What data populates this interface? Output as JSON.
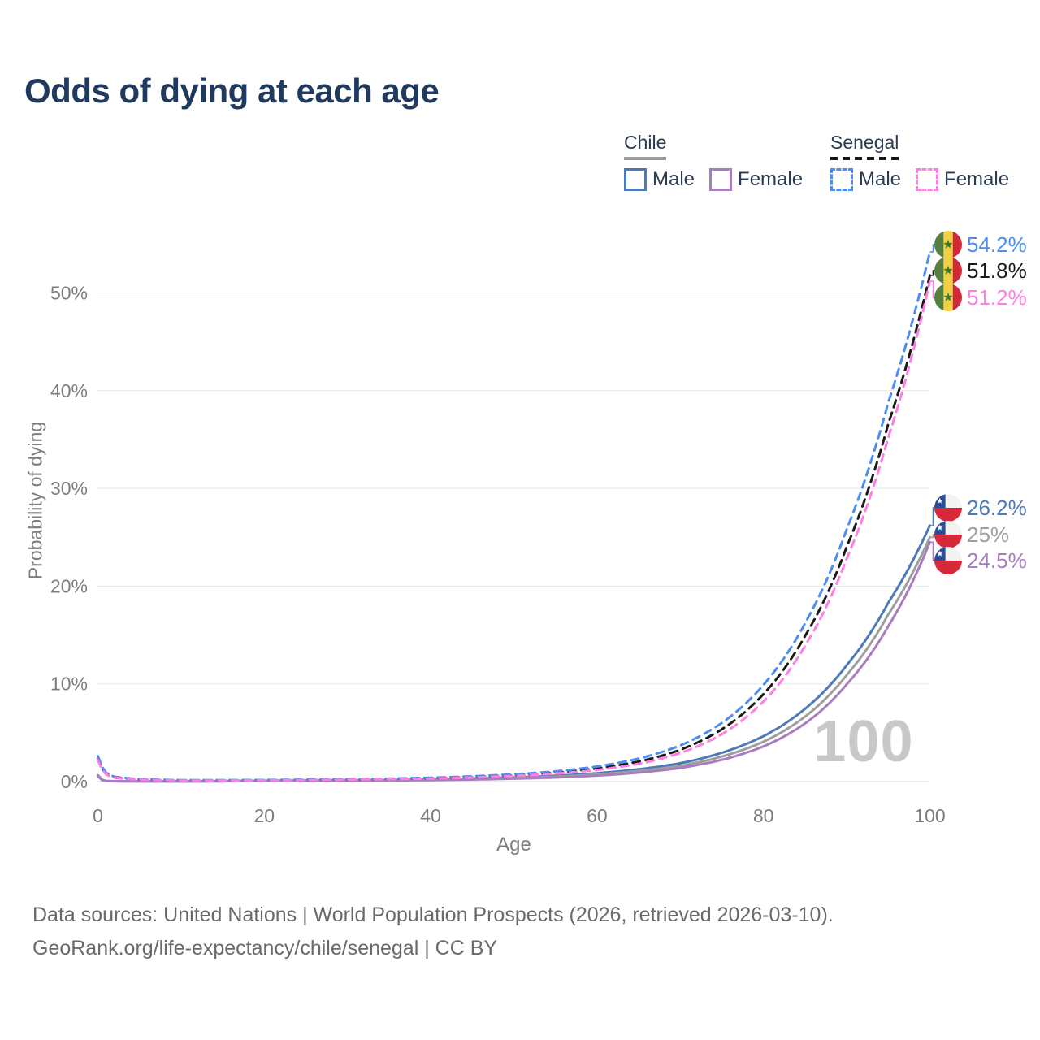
{
  "title": {
    "text": "Odds of dying at each age"
  },
  "legend": {
    "groups": [
      {
        "name": "Chile",
        "underline_style": "solid",
        "underline_color": "#999999",
        "items": [
          {
            "label": "Male",
            "color": "#4e79b8",
            "style": "solid"
          },
          {
            "label": "Female",
            "color": "#a87cbe",
            "style": "solid"
          }
        ]
      },
      {
        "name": "Senegal",
        "underline_style": "dashed",
        "underline_color": "#1a1a1a",
        "items": [
          {
            "label": "Male",
            "color": "#4d8cf0",
            "style": "dashed"
          },
          {
            "label": "Female",
            "color": "#fc7fe1",
            "style": "dashed"
          }
        ]
      }
    ]
  },
  "chart_data": {
    "type": "line",
    "title": "Odds of dying at each age",
    "xlabel": "Age",
    "ylabel": "Probability of dying",
    "xlim": [
      0,
      100
    ],
    "ylim": [
      0,
      56
    ],
    "xticks": [
      0,
      20,
      40,
      60,
      80,
      100
    ],
    "yticks": [
      "0%",
      "10%",
      "20%",
      "30%",
      "40%",
      "50%"
    ],
    "ytick_values": [
      0,
      10,
      20,
      30,
      40,
      50
    ],
    "grid": "horizontal",
    "legend_position": "top-right",
    "watermark": "100",
    "ages": [
      0,
      1,
      2,
      5,
      10,
      15,
      20,
      25,
      30,
      35,
      40,
      45,
      50,
      55,
      60,
      65,
      70,
      75,
      80,
      85,
      90,
      95,
      100
    ],
    "series": [
      {
        "name": "Senegal Male",
        "country": "Senegal",
        "sex": "Male",
        "color": "#4d8cf0",
        "dash": "dashed",
        "end_label": "54.2%",
        "flag": "senegal",
        "values": [
          2.6,
          0.9,
          0.5,
          0.25,
          0.15,
          0.15,
          0.17,
          0.2,
          0.25,
          0.31,
          0.4,
          0.55,
          0.75,
          1.05,
          1.55,
          2.35,
          3.7,
          6.0,
          9.9,
          16.2,
          25.8,
          38.8,
          54.2
        ]
      },
      {
        "name": "Senegal",
        "country": "Senegal",
        "sex": "Both",
        "color": "#1a1a1a",
        "dash": "dashed",
        "end_label": "51.8%",
        "flag": "senegal",
        "values": [
          2.4,
          0.8,
          0.45,
          0.22,
          0.13,
          0.13,
          0.15,
          0.18,
          0.22,
          0.27,
          0.35,
          0.48,
          0.66,
          0.92,
          1.35,
          2.05,
          3.25,
          5.35,
          8.95,
          14.9,
          24.0,
          36.6,
          51.8
        ]
      },
      {
        "name": "Senegal Female",
        "country": "Senegal",
        "sex": "Female",
        "color": "#fc7fe1",
        "dash": "dashed",
        "end_label": "51.2%",
        "flag": "senegal",
        "values": [
          2.2,
          0.72,
          0.4,
          0.2,
          0.12,
          0.12,
          0.13,
          0.16,
          0.2,
          0.24,
          0.31,
          0.43,
          0.59,
          0.82,
          1.2,
          1.82,
          2.92,
          4.85,
          8.2,
          13.9,
          22.8,
          35.2,
          51.2
        ]
      },
      {
        "name": "Chile Male",
        "country": "Chile",
        "sex": "Male",
        "color": "#4e79b8",
        "dash": "solid",
        "end_label": "26.2%",
        "flag": "chile",
        "values": [
          0.65,
          0.06,
          0.04,
          0.03,
          0.025,
          0.045,
          0.09,
          0.12,
          0.14,
          0.17,
          0.22,
          0.31,
          0.43,
          0.6,
          0.86,
          1.26,
          1.88,
          2.95,
          4.65,
          7.45,
          11.9,
          18.3,
          26.2
        ]
      },
      {
        "name": "Chile",
        "country": "Chile",
        "sex": "Both",
        "color": "#9e9e9e",
        "dash": "solid",
        "end_label": "25%",
        "flag": "chile",
        "values": [
          0.6,
          0.055,
          0.036,
          0.027,
          0.022,
          0.036,
          0.072,
          0.098,
          0.115,
          0.142,
          0.185,
          0.26,
          0.365,
          0.51,
          0.73,
          1.08,
          1.62,
          2.56,
          4.08,
          6.65,
          10.9,
          17.1,
          25.0
        ]
      },
      {
        "name": "Chile Female",
        "country": "Chile",
        "sex": "Female",
        "color": "#a87cbe",
        "dash": "solid",
        "end_label": "24.5%",
        "flag": "chile",
        "values": [
          0.55,
          0.05,
          0.032,
          0.024,
          0.019,
          0.028,
          0.055,
          0.075,
          0.092,
          0.115,
          0.152,
          0.21,
          0.3,
          0.425,
          0.615,
          0.92,
          1.4,
          2.23,
          3.6,
          5.95,
          9.95,
          15.9,
          24.5
        ]
      }
    ]
  },
  "footer": {
    "line1": "Data sources: United Nations | World Population Prospects (2026, retrieved 2026-03-10).",
    "line2": "GeoRank.org/life-expectancy/chile/senegal | CC BY"
  }
}
